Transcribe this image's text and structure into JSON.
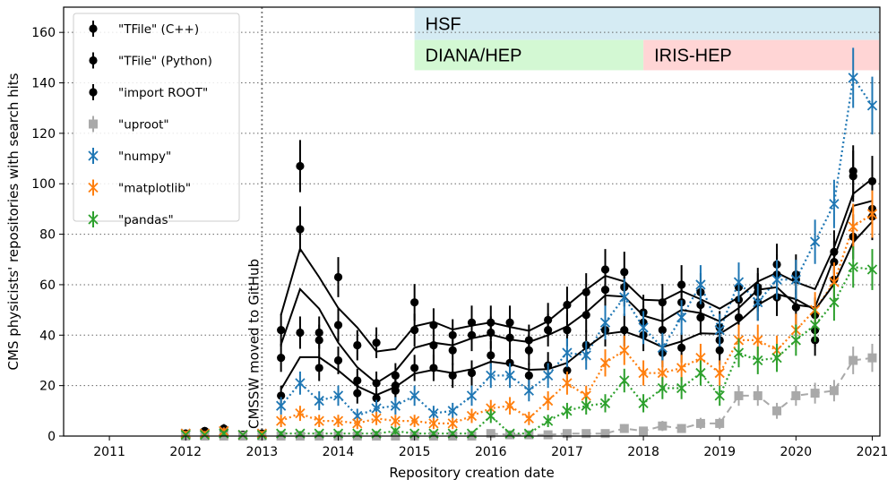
{
  "chart_data": {
    "type": "scatter",
    "xlabel": "Repository creation date",
    "ylabel": "CMS physicists' repositories with search hits",
    "xlim": [
      2010.4,
      2021.1
    ],
    "ylim": [
      0,
      170
    ],
    "xticks": [
      2011,
      2012,
      2013,
      2014,
      2015,
      2016,
      2017,
      2018,
      2019,
      2020,
      2021
    ],
    "yticks": [
      0,
      20,
      40,
      60,
      80,
      100,
      120,
      140,
      160
    ],
    "grid": "horizontal dotted",
    "legend_position": "top-left",
    "annotation": {
      "text": "CMSSW moved to GitHub",
      "x": 2013.0
    },
    "bands": [
      {
        "label": "HSF",
        "x0": 2015.0,
        "x1": 2021.1,
        "y0": 157,
        "y1": 170,
        "color": "#d5ebf3"
      },
      {
        "label": "DIANA/HEP",
        "x0": 2015.0,
        "x1": 2018.0,
        "y0": 145,
        "y1": 157,
        "color": "#d3f8d3"
      },
      {
        "label": "IRIS-HEP",
        "x0": 2018.0,
        "x1": 2021.1,
        "y0": 145,
        "y1": 157,
        "color": "#ffd5d5"
      }
    ],
    "x": [
      2012.0,
      2012.25,
      2012.5,
      2012.75,
      2013.0,
      2013.25,
      2013.5,
      2013.75,
      2014.0,
      2014.25,
      2014.5,
      2014.75,
      2015.0,
      2015.25,
      2015.5,
      2015.75,
      2016.0,
      2016.25,
      2016.5,
      2016.75,
      2017.0,
      2017.25,
      2017.5,
      2017.75,
      2018.0,
      2018.25,
      2018.5,
      2018.75,
      2019.0,
      2019.25,
      2019.5,
      2019.75,
      2020.0,
      2020.25,
      2020.5,
      2020.75,
      2021.0
    ],
    "series": [
      {
        "name": "\"TFile\" (C++)",
        "color": "#000000",
        "marker": "circle",
        "style": "errorbar",
        "values": [
          1,
          2,
          3,
          0.5,
          1,
          42,
          107,
          41,
          63,
          36,
          37,
          24,
          53,
          44,
          40,
          45,
          45,
          45,
          38,
          46,
          52,
          57,
          66,
          65,
          49,
          53,
          60,
          57,
          43,
          59,
          59,
          68,
          64,
          48,
          73,
          105,
          101
        ]
      },
      {
        "name": "\"TFile\" (Python)",
        "color": "#000000",
        "marker": "circle",
        "style": "errorbar",
        "values": [
          1,
          2,
          2,
          0.5,
          1,
          31,
          82,
          38,
          44,
          22,
          21,
          20,
          42,
          36,
          34,
          40,
          41,
          39,
          34,
          42,
          42,
          48,
          58,
          59,
          45,
          42,
          53,
          52,
          38,
          54,
          57,
          64,
          51,
          42,
          69,
          103,
          90
        ]
      },
      {
        "name": "\"import ROOT\"",
        "color": "#000000",
        "marker": "circle",
        "style": "errorbar",
        "values": [
          1,
          1,
          1,
          0.5,
          1,
          16,
          41,
          27,
          30,
          17,
          15,
          18,
          27,
          27,
          24,
          25,
          32,
          29,
          24,
          28,
          26,
          36,
          42,
          42,
          40,
          33,
          35,
          47,
          34,
          47,
          53,
          55,
          62,
          38,
          62,
          79,
          87
        ]
      },
      {
        "name": "\"uproot\"",
        "color": "#a9a9a9",
        "marker": "square",
        "style": "dashed",
        "values": [
          0,
          0,
          0,
          0,
          0,
          0,
          0,
          0,
          0,
          0,
          0,
          0,
          0,
          0,
          0,
          0,
          1,
          0.5,
          0.5,
          0.5,
          1,
          1,
          1,
          3,
          2,
          4,
          3,
          5,
          5,
          16,
          16,
          10,
          16,
          17,
          18,
          30,
          31
        ]
      },
      {
        "name": "\"numpy\"",
        "color": "#1f77b4",
        "marker": "x",
        "style": "dotted",
        "values": [
          1,
          1,
          2,
          0.5,
          1,
          12,
          21,
          14,
          16,
          8,
          11,
          12,
          16,
          9,
          10,
          16,
          24,
          24,
          18,
          24,
          33,
          32,
          45,
          55,
          43,
          35,
          47,
          60,
          42,
          61,
          53,
          62,
          62,
          77,
          92,
          142,
          131
        ]
      },
      {
        "name": "\"matplotlib\"",
        "color": "#ff7f0e",
        "marker": "x",
        "style": "dotted",
        "values": [
          1,
          1,
          2,
          0.5,
          1,
          6,
          9,
          6,
          6,
          5,
          7,
          6,
          6,
          5,
          5,
          8,
          11,
          12,
          7,
          14,
          21,
          16,
          29,
          34,
          25,
          25,
          27,
          31,
          25,
          38,
          38,
          34,
          42,
          50,
          61,
          83,
          88
        ]
      },
      {
        "name": "\"pandas\"",
        "color": "#2ca02c",
        "marker": "x",
        "style": "dotted",
        "values": [
          0.5,
          0.5,
          1,
          0.5,
          0.5,
          1,
          1,
          1,
          1,
          1,
          1,
          2,
          1,
          1,
          1,
          1,
          8,
          1,
          1,
          6,
          10,
          12,
          13,
          22,
          13,
          19,
          19,
          25,
          16,
          33,
          30,
          31,
          38,
          44,
          53,
          67,
          66
        ]
      }
    ]
  }
}
